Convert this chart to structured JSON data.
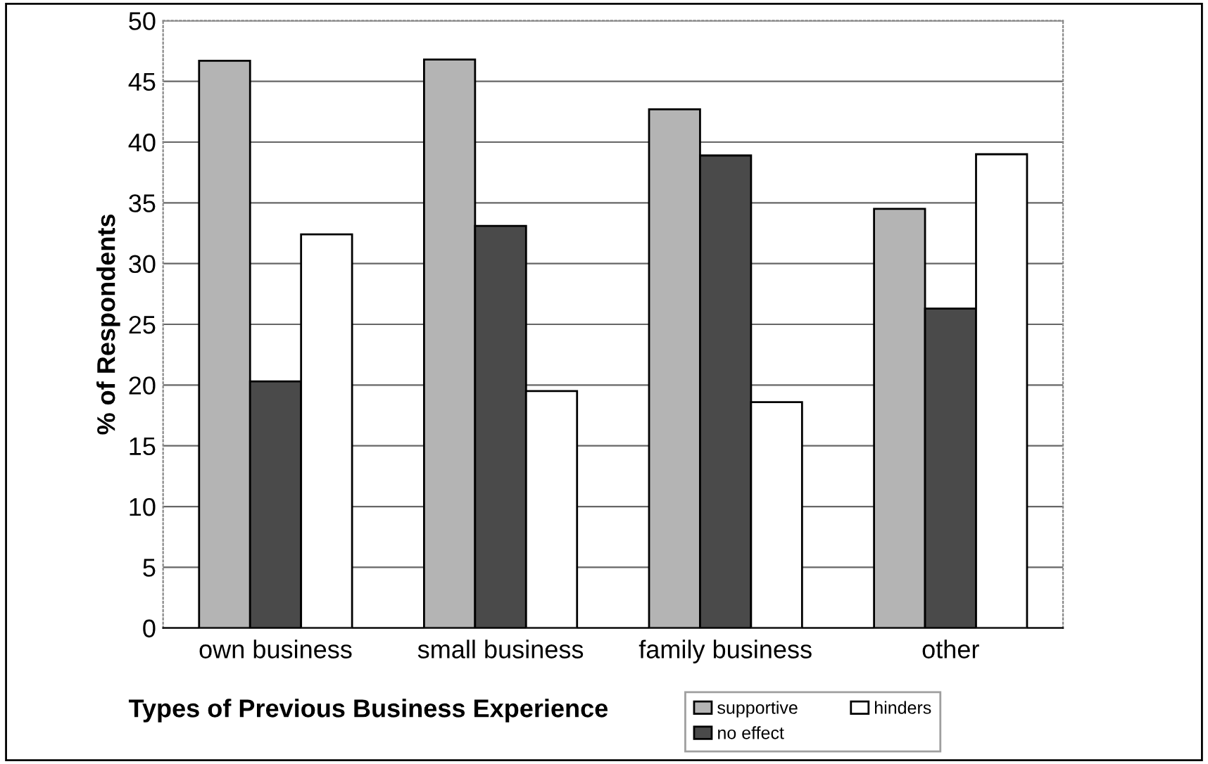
{
  "chart_data": {
    "type": "bar",
    "xlabel": "Types of Previous Business Experience",
    "ylabel": "% of Respondents",
    "categories": [
      "own business",
      "small business",
      "family business",
      "other"
    ],
    "series": [
      {
        "name": "supportive",
        "color": "#b4b4b4",
        "values": [
          46.7,
          46.8,
          42.7,
          34.5
        ]
      },
      {
        "name": "no effect",
        "color": "#4a4a4a",
        "values": [
          20.3,
          33.1,
          38.9,
          26.3
        ]
      },
      {
        "name": "hinders",
        "color": "#ffffff",
        "values": [
          32.4,
          19.5,
          18.6,
          39.0
        ]
      }
    ],
    "ylim": [
      0,
      50
    ],
    "yticks": [
      0,
      5,
      10,
      15,
      20,
      25,
      30,
      35,
      40,
      45,
      50
    ],
    "grid": "y",
    "legend": "bottom right"
  }
}
